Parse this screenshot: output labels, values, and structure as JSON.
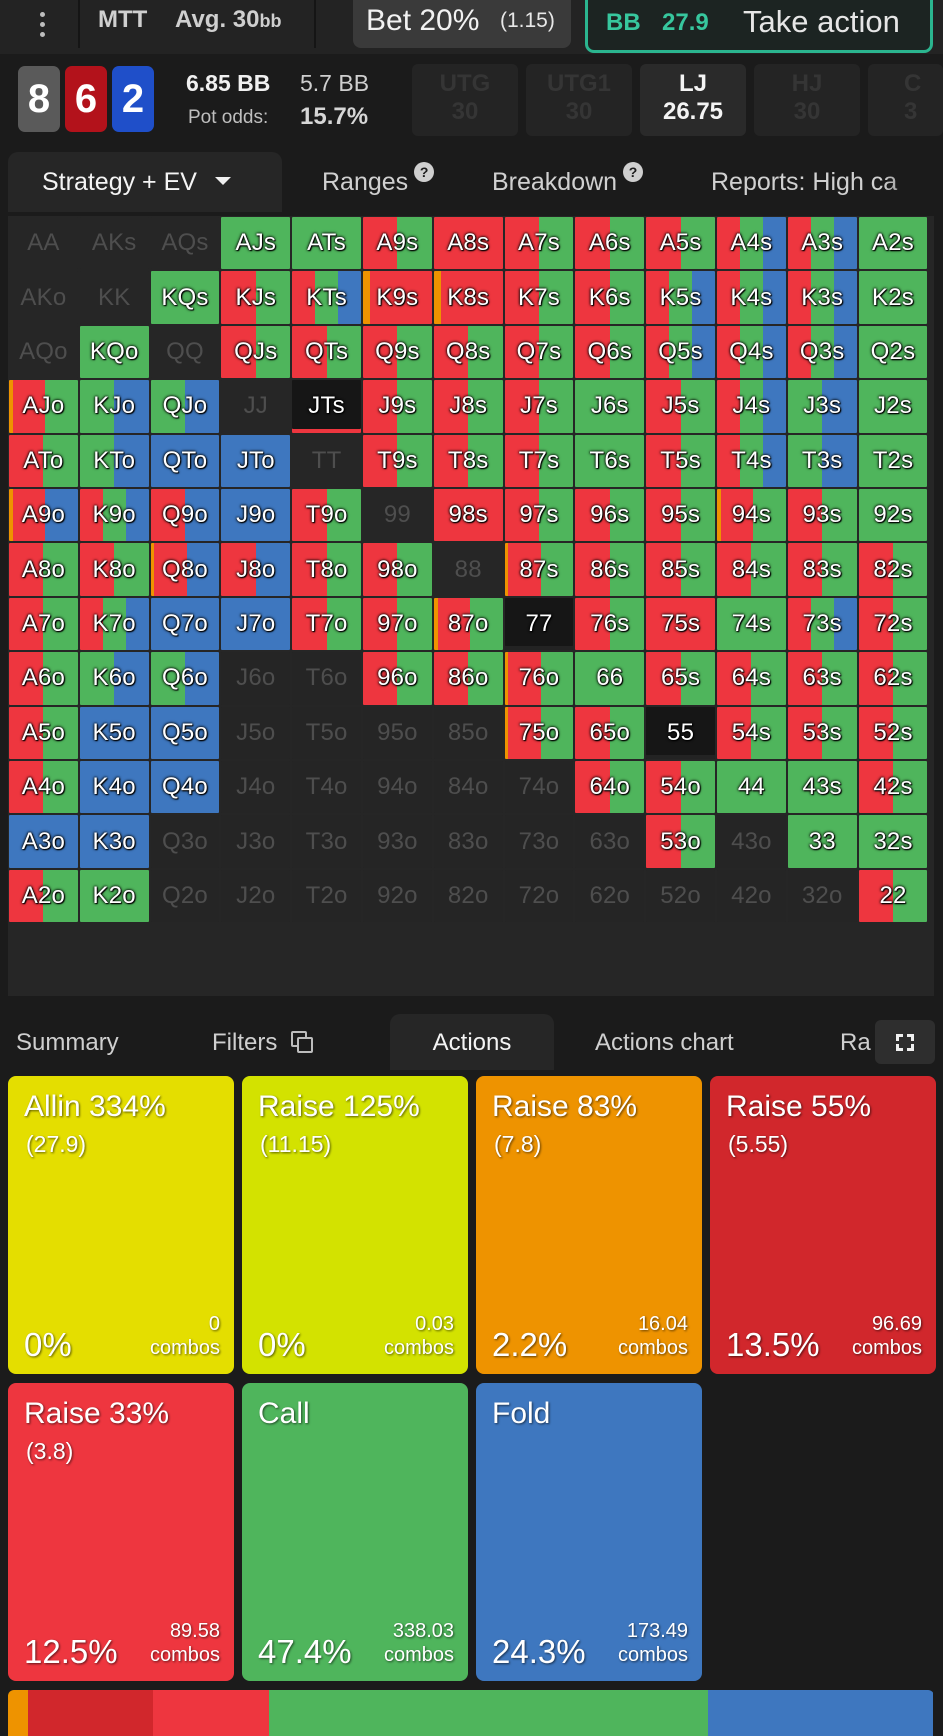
{
  "topbar": {
    "game_type": "MTT",
    "game_depth": "Avg. 30",
    "game_depth_unit": "bb",
    "bet_label": "Bet 20%",
    "bet_amount": "(1.15)",
    "action_position": "BB",
    "action_stack": "27.9",
    "action_label": "Take action"
  },
  "board": {
    "cards": [
      {
        "rank": "8",
        "color": "#5a5a5a"
      },
      {
        "rank": "6",
        "color": "#b3121b"
      },
      {
        "rank": "2",
        "color": "#1f4fc9"
      }
    ],
    "pot": "6.85 BB",
    "effective": "5.7 BB",
    "pot_odds_label": "Pot odds:",
    "pot_odds_value": "15.7%"
  },
  "positions": [
    {
      "name": "UTG",
      "stack": "30",
      "active": false
    },
    {
      "name": "UTG1",
      "stack": "30",
      "active": false
    },
    {
      "name": "LJ",
      "stack": "26.75",
      "active": true
    },
    {
      "name": "HJ",
      "stack": "30",
      "active": false
    },
    {
      "name": "C",
      "stack": "3",
      "active": false
    }
  ],
  "view_tabs": {
    "strategy": "Strategy + EV",
    "ranges": "Ranges",
    "breakdown": "Breakdown",
    "reports": "Reports: High ca",
    "help_glyph": "?"
  },
  "colors": {
    "allin": "#e4de00",
    "raise125": "#d3e200",
    "raise83": "#ee9300",
    "raise55": "#d1272c",
    "raise33": "#ee363f",
    "call": "#4fb55c",
    "fold": "#3e77bf"
  },
  "grid": {
    "ranks": [
      "A",
      "K",
      "Q",
      "J",
      "T",
      "9",
      "8",
      "7",
      "6",
      "5",
      "4",
      "3",
      "2"
    ],
    "rows": [
      [
        "-",
        "-",
        "-",
        "G",
        "G",
        "RG",
        "R",
        "RG",
        "RG",
        "RG",
        "RGB",
        "RGB",
        "G"
      ],
      [
        "-",
        "-",
        "G",
        "RG",
        "RGB",
        "OR",
        "OR",
        "RG",
        "RG",
        "RGB",
        "RGB",
        "RGB",
        "G"
      ],
      [
        "-",
        "G",
        "-",
        "RG",
        "RG",
        "RG",
        "RG",
        "RG",
        "RG",
        "RGB",
        "RGB",
        "RGB",
        "G"
      ],
      [
        "ORG",
        "GB",
        "GB",
        "-",
        "W",
        "RG",
        "RG",
        "RG",
        "G",
        "RG",
        "RGB",
        "GB",
        "G"
      ],
      [
        "RG",
        "GB",
        "B",
        "B",
        "-",
        "RG",
        "RG",
        "RG",
        "G",
        "RG",
        "RGB",
        "GB",
        "G"
      ],
      [
        "ORB",
        "RGB",
        "RB",
        "B",
        "RG",
        "-",
        "R",
        "RG",
        "RG",
        "RG",
        "ORG",
        "RG",
        "G"
      ],
      [
        "RG",
        "RG",
        "ORB",
        "RB",
        "RG",
        "RG",
        "-",
        "ORG",
        "RG",
        "RG",
        "RG",
        "RG",
        "RG"
      ],
      [
        "RG",
        "RGB",
        "B",
        "B",
        "RG",
        "RG",
        "ORG",
        "W",
        "RG",
        "R",
        "G",
        "RGB",
        "RG"
      ],
      [
        "RG",
        "GB",
        "GB",
        "x",
        "x",
        "RG",
        "RG",
        "ORG",
        "G",
        "RG",
        "RG",
        "RG",
        "RG"
      ],
      [
        "RG",
        "B",
        "B",
        "x",
        "x",
        "x",
        "x",
        "ORG",
        "RG",
        "W",
        "RG",
        "RG",
        "RG"
      ],
      [
        "RG",
        "B",
        "B",
        "x",
        "x",
        "x",
        "x",
        "x",
        "RG",
        "RG",
        "G",
        "G",
        "RG"
      ],
      [
        "B",
        "B",
        "x",
        "x",
        "x",
        "x",
        "x",
        "x",
        "x",
        "RG",
        "x",
        "G",
        "G"
      ],
      [
        "RG",
        "G",
        "x",
        "x",
        "x",
        "x",
        "x",
        "x",
        "x",
        "x",
        "x",
        "x",
        "RG"
      ]
    ]
  },
  "lower_tabs": {
    "summary": "Summary",
    "filters": "Filters",
    "actions": "Actions",
    "actions_chart": "Actions chart",
    "cut": "Ra"
  },
  "actions": [
    {
      "name": "Allin 334%",
      "size": "(27.9)",
      "pct": "0%",
      "combos": "0",
      "combos_label": "combos",
      "color": "#e4de00"
    },
    {
      "name": "Raise 125%",
      "size": "(11.15)",
      "pct": "0%",
      "combos": "0.03",
      "combos_label": "combos",
      "color": "#d3e200"
    },
    {
      "name": "Raise 83%",
      "size": "(7.8)",
      "pct": "2.2%",
      "combos": "16.04",
      "combos_label": "combos",
      "color": "#ee9300"
    },
    {
      "name": "Raise 55%",
      "size": "(5.55)",
      "pct": "13.5%",
      "combos": "96.69",
      "combos_label": "combos",
      "color": "#d1272c"
    },
    {
      "name": "Raise 33%",
      "size": "(3.8)",
      "pct": "12.5%",
      "combos": "89.58",
      "combos_label": "combos",
      "color": "#ee363f"
    },
    {
      "name": "Call",
      "size": "",
      "pct": "47.4%",
      "combos": "338.03",
      "combos_label": "combos",
      "color": "#4fb55c"
    },
    {
      "name": "Fold",
      "size": "",
      "pct": "24.3%",
      "combos": "173.49",
      "combos_label": "combos",
      "color": "#3e77bf"
    }
  ],
  "distribution": [
    {
      "share": 2.2,
      "color": "#ee9300"
    },
    {
      "share": 13.5,
      "color": "#d1272c"
    },
    {
      "share": 12.5,
      "color": "#ee363f"
    },
    {
      "share": 47.4,
      "color": "#4fb55c"
    },
    {
      "share": 24.3,
      "color": "#3e77bf"
    }
  ]
}
